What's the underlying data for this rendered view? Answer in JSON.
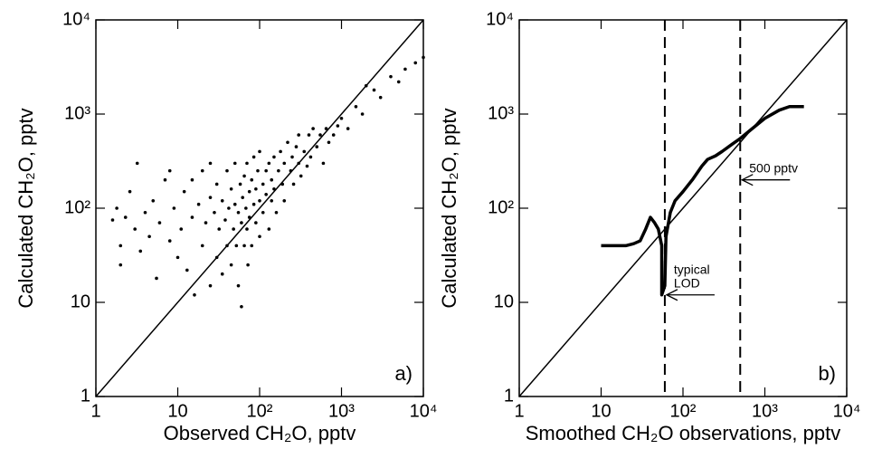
{
  "chart_data": [
    {
      "type": "scatter",
      "panel_label": "a)",
      "xlabel": "Observed CH₂O, pptv",
      "ylabel": "Calculated CH₂O, pptv",
      "log_x": true,
      "log_y": true,
      "diagonal": true,
      "color": "#000000",
      "xlim": [
        1,
        10000
      ],
      "ylim": [
        1,
        10000
      ],
      "xticks": [
        1,
        10,
        {
          "value": 100,
          "label": "10²"
        },
        {
          "value": 1000,
          "label": "10³"
        },
        {
          "value": 10000,
          "label": "10⁴"
        }
      ],
      "yticks": [
        1,
        10,
        {
          "value": 100,
          "label": "10²"
        },
        {
          "value": 1000,
          "label": "10³"
        },
        {
          "value": 10000,
          "label": "10⁴"
        }
      ],
      "x": [
        1.6,
        1.8,
        2,
        2,
        2.3,
        2.6,
        3,
        3.2,
        3.5,
        4,
        4.5,
        5,
        5.5,
        6,
        7,
        8,
        9,
        10,
        11,
        12,
        13,
        15,
        16,
        18,
        20,
        20,
        22,
        25,
        25,
        28,
        30,
        30,
        32,
        35,
        35,
        38,
        40,
        40,
        42,
        45,
        45,
        48,
        50,
        50,
        52,
        55,
        55,
        58,
        60,
        60,
        62,
        65,
        65,
        68,
        70,
        70,
        72,
        75,
        75,
        80,
        80,
        85,
        85,
        90,
        90,
        95,
        100,
        100,
        100,
        110,
        110,
        120,
        120,
        130,
        130,
        140,
        140,
        150,
        150,
        160,
        170,
        180,
        190,
        200,
        200,
        220,
        240,
        250,
        260,
        280,
        300,
        300,
        320,
        350,
        380,
        400,
        420,
        450,
        500,
        550,
        600,
        650,
        700,
        800,
        900,
        1000,
        1200,
        1500,
        1800,
        2000,
        2500,
        3000,
        4000,
        5000,
        6000,
        8000,
        10000,
        8,
        15,
        25
      ],
      "values": [
        75,
        100,
        40,
        25,
        80,
        150,
        60,
        300,
        35,
        90,
        50,
        120,
        18,
        70,
        200,
        45,
        100,
        30,
        60,
        150,
        22,
        80,
        12,
        110,
        40,
        250,
        70,
        15,
        130,
        90,
        30,
        180,
        60,
        120,
        20,
        75,
        40,
        250,
        100,
        25,
        160,
        60,
        110,
        300,
        40,
        90,
        15,
        180,
        70,
        9,
        130,
        40,
        220,
        100,
        60,
        300,
        25,
        150,
        80,
        200,
        40,
        110,
        350,
        70,
        160,
        250,
        120,
        50,
        400,
        180,
        90,
        250,
        140,
        60,
        300,
        200,
        120,
        350,
        160,
        90,
        250,
        400,
        180,
        300,
        120,
        500,
        250,
        350,
        180,
        450,
        300,
        600,
        220,
        400,
        280,
        600,
        350,
        700,
        450,
        600,
        300,
        700,
        500,
        600,
        750,
        900,
        700,
        1200,
        1000,
        2000,
        1800,
        1500,
        2500,
        2200,
        3000,
        3500,
        4000,
        250,
        200,
        300
      ]
    },
    {
      "type": "line",
      "panel_label": "b)",
      "xlabel": "Smoothed CH₂O observations, pptv",
      "ylabel": "Calculated CH₂O, pptv",
      "log_x": true,
      "log_y": true,
      "diagonal": true,
      "color": "#000000",
      "xlim": [
        1,
        10000
      ],
      "ylim": [
        1,
        10000
      ],
      "xticks": [
        1,
        10,
        {
          "value": 100,
          "label": "10²"
        },
        {
          "value": 1000,
          "label": "10³"
        },
        {
          "value": 10000,
          "label": "10⁴"
        }
      ],
      "yticks": [
        1,
        10,
        {
          "value": 100,
          "label": "10²"
        },
        {
          "value": 1000,
          "label": "10³"
        },
        {
          "value": 10000,
          "label": "10⁴"
        }
      ],
      "vlines": [
        60,
        500
      ],
      "annotations": [
        {
          "text": [
            "500 pptv"
          ],
          "x": 500,
          "y": 200
        },
        {
          "text": [
            "typical",
            "LOD"
          ],
          "x": 60,
          "y": 12
        }
      ],
      "x": [
        10,
        15,
        20,
        25,
        30,
        35,
        40,
        45,
        50,
        55,
        55,
        55,
        60,
        62,
        70,
        80,
        100,
        130,
        170,
        200,
        250,
        300,
        400,
        500,
        700,
        1000,
        1500,
        2000,
        3000
      ],
      "values": [
        40,
        40,
        40,
        42,
        45,
        60,
        80,
        70,
        60,
        40,
        20,
        12,
        15,
        50,
        90,
        120,
        150,
        200,
        280,
        330,
        360,
        400,
        480,
        550,
        700,
        900,
        1100,
        1200,
        1200
      ]
    }
  ]
}
